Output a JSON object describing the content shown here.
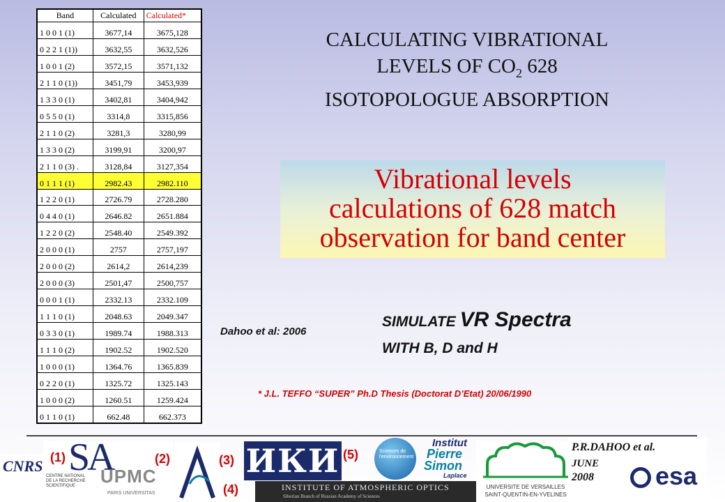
{
  "table": {
    "headers": [
      "Band",
      "Calculated",
      "Calculated*"
    ],
    "rows": [
      [
        "1 0 0 1 (1)",
        "3677,14",
        "3675,128"
      ],
      [
        "0 2 2 1 (1))",
        "3632,55",
        "3632,526"
      ],
      [
        "1 0 0 1 (2)",
        "3572,15",
        "3571,132"
      ],
      [
        "2 1 1 0 (1))",
        "3451,79",
        "3453,939"
      ],
      [
        "1 3 3 0 (1)",
        "3402,81",
        "3404,942"
      ],
      [
        "0 5 5 0 (1)",
        "3314,8",
        "3315,856"
      ],
      [
        "2 1 1 0 (2)",
        "3281,3",
        "3280,99"
      ],
      [
        "1 3 3 0 (2)",
        "3199,91",
        "3200,97"
      ],
      [
        "2 1 1 0 (3) .",
        "3128,84",
        "3127,354"
      ],
      [
        "0 1 1 1 (1)",
        "2982.43",
        "2982.110"
      ],
      [
        "1 2 2 0 (1)",
        "2726.79",
        "2728.280"
      ],
      [
        "0 4 4 0 (1)",
        "2646.82",
        "2651.884"
      ],
      [
        "1 2 2 0 (2)",
        "2548.40",
        "2549.392"
      ],
      [
        "2 0 0 0 (1)",
        "2757",
        "2757,197"
      ],
      [
        "2 0 0 0 (2)",
        "2614,2",
        "2614,239"
      ],
      [
        "2 0 0 0 (3)",
        "2501,47",
        "2500,757"
      ],
      [
        "0 0 0 1 (1)",
        "2332.13",
        "2332.109"
      ],
      [
        "1 1 1 0 (1)",
        "2048.63",
        "2049.347"
      ],
      [
        "0 3 3 0 (1)",
        "1989.74",
        "1988.313"
      ],
      [
        "1 1 1 0 (2)",
        "1902.52",
        "1902.520"
      ],
      [
        "1 0 0 0 (1)",
        "1364.76",
        "1365.839"
      ],
      [
        "0 2 2 0 (1)",
        "1325.72",
        "1325.143"
      ],
      [
        "1 0 0 0 (2)",
        "1260.51",
        "1259.424"
      ],
      [
        "0 1 1 0 (1)",
        "662.48",
        "662.373"
      ]
    ],
    "highlight_row": 9,
    "highlight_color": "#ffff33"
  },
  "title": {
    "line1": "CALCULATING VIBRATIONAL",
    "line2_pre": "LEVELS OF  CO",
    "line2_sub": "2",
    "line2_post": " 628",
    "line3": "ISOTOPOLOGUE ABSORPTION"
  },
  "highlight": {
    "line1": "Vibrational levels",
    "line2": "calculations of 628 match",
    "line3": "observation for band center",
    "color": "#d40000"
  },
  "citation": "Dahoo et al: 2006",
  "simulate": {
    "word1": "SIMULATE",
    "word2": "VR Spectra",
    "line2": "WITH B, D and H"
  },
  "footnote": "* J.L. TEFFO “SUPER” Ph.D Thesis (Doctorat D’Etat) 20/06/1990",
  "refs": [
    "(1)",
    "(2)",
    "(3)",
    "(4)",
    "(5)"
  ],
  "author": {
    "name": "P.R.DAHOO et al.",
    "month": "JUNE",
    "year": "2008"
  },
  "logos": {
    "cnrs": "CNRS",
    "cnrs_caption": "CENTRE NATIONAL DE LA RECHERCHE SCIENTIFIQUE",
    "sa": "SA",
    "upmc": "UPMC",
    "upmc_caption": "PARIS UNIVERSITAS",
    "iki": "ИКИ",
    "iao": "INSTITUTE OF ATMOSPHERIC OPTICS",
    "iao_sub": "Siberian Branch of Russian Academy of Sciences",
    "sciences": "Sciences de l'environnement",
    "ipsl_1": "Institut",
    "ipsl_2": "Pierre",
    "ipsl_3": "Simon",
    "ipsl_4": "Laplace",
    "uvsq_1": "UNIVERSITE DE VERSAILLES",
    "uvsq_2": "SAINT-QUENTIN-EN-YVELINES",
    "esa": "esa",
    "colors": {
      "red": "#d40000",
      "blue": "#1b2a6b",
      "teal": "#0a7ea4",
      "green": "#169a3a"
    }
  }
}
